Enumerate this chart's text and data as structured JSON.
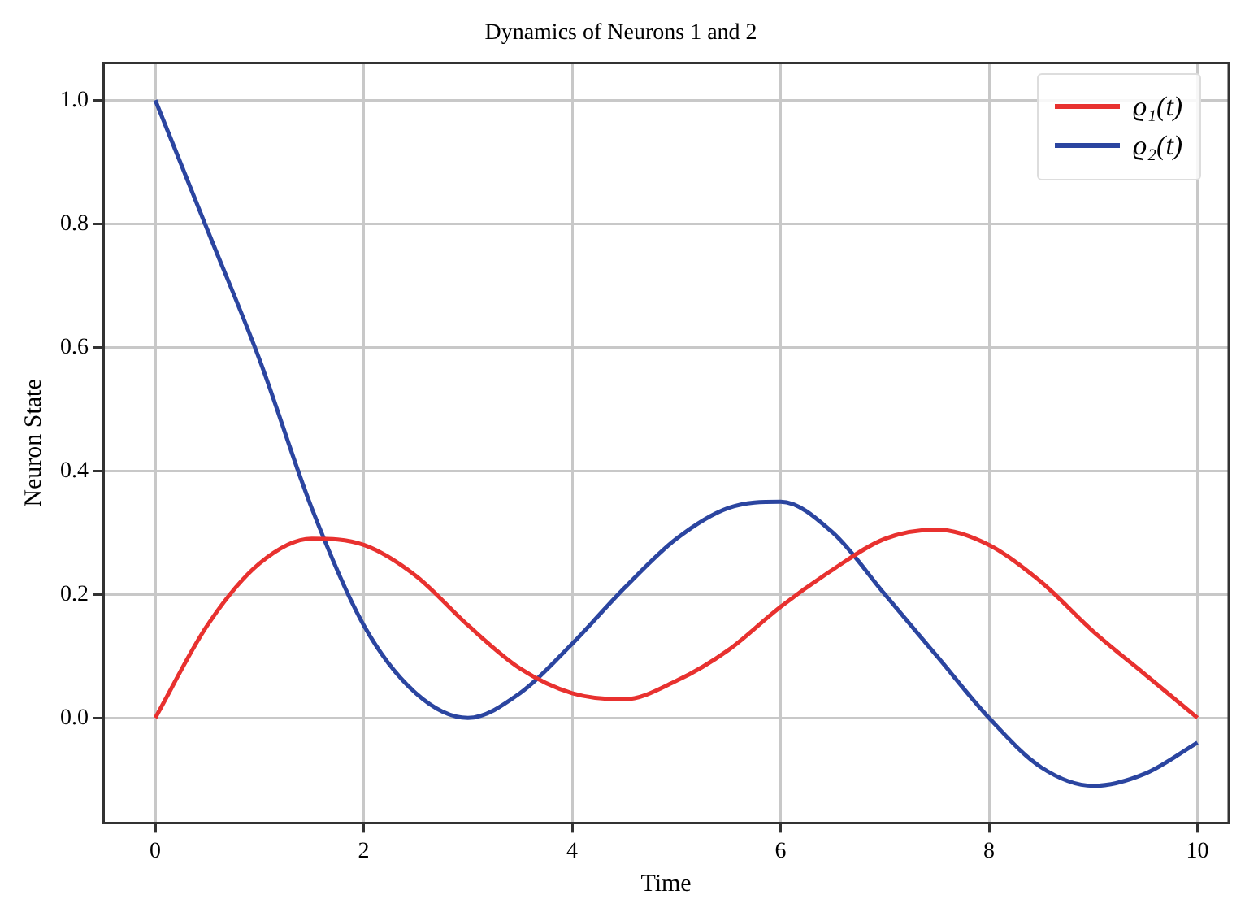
{
  "chart_data": {
    "type": "line",
    "title": "Dynamics of Neurons 1 and 2",
    "xlabel": "Time",
    "ylabel": "Neuron State",
    "x": [
      0,
      0.5,
      1,
      1.5,
      2,
      2.5,
      3,
      3.5,
      4,
      4.5,
      5,
      5.5,
      6,
      6.5,
      7,
      7.5,
      8,
      8.5,
      9,
      9.5,
      10
    ],
    "series": [
      {
        "name": "ϱ₁(t)",
        "color": "#e8312f",
        "values": [
          0,
          0.15,
          0.25,
          0.29,
          0.28,
          0.23,
          0.15,
          0.08,
          0.04,
          0.03,
          0.06,
          0.11,
          0.18,
          0.24,
          0.29,
          0.305,
          0.28,
          0.22,
          0.14,
          0.07,
          0.0
        ]
      },
      {
        "name": "ϱ₂(t)",
        "color": "#2b45a0",
        "values": [
          1.0,
          0.79,
          0.58,
          0.34,
          0.15,
          0.04,
          0.0,
          0.04,
          0.12,
          0.21,
          0.29,
          0.34,
          0.35,
          0.3,
          0.2,
          0.1,
          0.0,
          -0.08,
          -0.11,
          -0.09,
          -0.04
        ]
      }
    ],
    "xlim": [
      -0.5,
      10.3
    ],
    "ylim": [
      -0.17,
      1.06
    ],
    "xticks": [
      0,
      2,
      4,
      6,
      8,
      10
    ],
    "yticks": [
      {
        "value": 0,
        "label": "0.0"
      },
      {
        "value": 0.2,
        "label": "0.2"
      },
      {
        "value": 0.4,
        "label": "0.4"
      },
      {
        "value": 0.6,
        "label": "0.6"
      },
      {
        "value": 0.8,
        "label": "0.8"
      },
      {
        "value": 1,
        "label": "1.0"
      }
    ],
    "grid": true,
    "legend": "top right",
    "marker": "none",
    "line_style": "solid"
  }
}
